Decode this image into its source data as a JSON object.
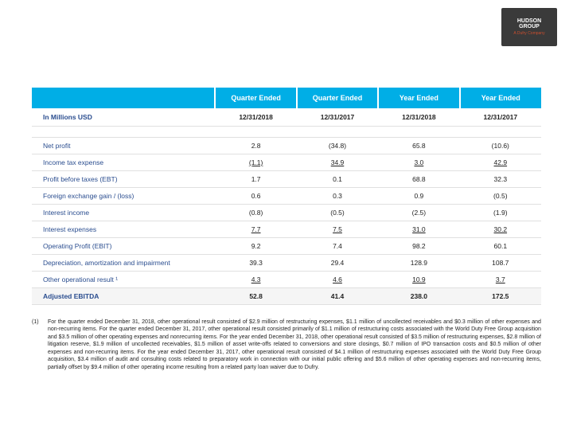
{
  "logo": {
    "line1": "HUDSON",
    "line2": "GROUP",
    "sub": "A Dufry Company"
  },
  "table": {
    "colHeaders": [
      "",
      "Quarter Ended",
      "Quarter Ended",
      "Year Ended",
      "Year Ended"
    ],
    "subHeaders": [
      "In Millions USD",
      "12/31/2018",
      "12/31/2017",
      "12/31/2018",
      "12/31/2017"
    ],
    "rows": [
      {
        "label": "Net profit",
        "vals": [
          "2.8",
          "(34.8)",
          "65.8",
          "(10.6)"
        ],
        "u": [
          false,
          false,
          false,
          false
        ]
      },
      {
        "label": "Income tax expense",
        "vals": [
          "(1.1)",
          "34.9",
          "3.0",
          "42.9"
        ],
        "u": [
          true,
          true,
          true,
          true
        ]
      },
      {
        "label": "Profit before taxes (EBT)",
        "vals": [
          "1.7",
          "0.1",
          "68.8",
          "32.3"
        ],
        "u": [
          false,
          false,
          false,
          false
        ]
      },
      {
        "label": "Foreign exchange gain / (loss)",
        "vals": [
          "0.6",
          "0.3",
          "0.9",
          "(0.5)"
        ],
        "u": [
          false,
          false,
          false,
          false
        ]
      },
      {
        "label": "Interest income",
        "vals": [
          "(0.8)",
          "(0.5)",
          "(2.5)",
          "(1.9)"
        ],
        "u": [
          false,
          false,
          false,
          false
        ]
      },
      {
        "label": "Interest expenses",
        "vals": [
          "7.7",
          "7.5",
          "31.0",
          "30.2"
        ],
        "u": [
          true,
          true,
          true,
          true
        ]
      },
      {
        "label": "Operating Profit (EBIT)",
        "vals": [
          "9.2",
          "7.4",
          "98.2",
          "60.1"
        ],
        "u": [
          false,
          false,
          false,
          false
        ]
      },
      {
        "label": "Depreciation, amortization and impairment",
        "vals": [
          "39.3",
          "29.4",
          "128.9",
          "108.7"
        ],
        "u": [
          false,
          false,
          false,
          false
        ]
      },
      {
        "label": "Other operational result ¹",
        "vals": [
          "4.3",
          "4.6",
          "10.9",
          "3.7"
        ],
        "u": [
          true,
          true,
          true,
          true
        ]
      },
      {
        "label": "Adjusted EBITDA",
        "vals": [
          "52.8",
          "41.4",
          "238.0",
          "172.5"
        ],
        "u": [
          false,
          false,
          false,
          false
        ],
        "total": true
      }
    ]
  },
  "footnote": {
    "num": "(1)",
    "text": "For the quarter ended December 31, 2018, other operational result consisted of $2.9 million of restructuring expenses, $1.1 million of uncollected receivables and $0.3 million of other expenses and non-recurring items. For the quarter ended December 31, 2017, other operational result consisted primarily of $1.1 million of restructuring costs associated with the World Duty Free Group acquisition and $3.5 million of other operating expenses and nonrecurring items. For the year ended December 31, 2018, other operational result consisted of $3.5 million of restructuring expenses, $2.8 million of litigation reserve, $1.9 million of uncollected receivables, $1.5 million of asset write-offs related to conversions and store closings, $0.7 million of IPO transaction costs and $0.5 million of other expenses and non-recurring items. For the year ended December 31, 2017, other operational result consisted of $4.1 million of restructuring expenses associated with the World Duty Free Group acquisition, $3.4 million of audit and consulting costs related to preparatory work in connection with our initial public offering and $5.6 million of other operating expenses and non-recurring items, partially offset by $9.4 million of other operating income resulting from a related party loan waiver due to Dufry."
  },
  "colors": {
    "header_bg": "#00aee6",
    "header_fg": "#ffffff",
    "row_label_fg": "#2a4d8f",
    "border": "#e0e0e0",
    "logo_bg": "#3a3a3a",
    "logo_accent": "#c94f2f",
    "total_bg": "#f5f5f5"
  }
}
